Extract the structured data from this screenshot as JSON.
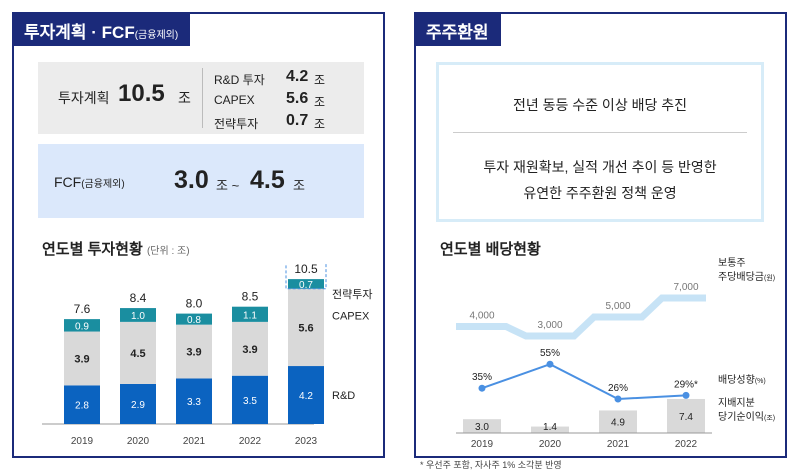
{
  "left_panel": {
    "title": "투자계획 · FCF",
    "title_note": "(금융제외)",
    "plan_label": "투자계획",
    "plan_value": "10.5",
    "plan_unit": "조",
    "breakdown": [
      {
        "label": "R&D 투자",
        "value": "4.2",
        "unit": "조"
      },
      {
        "label": "CAPEX",
        "value": "5.6",
        "unit": "조"
      },
      {
        "label": "전략투자",
        "value": "0.7",
        "unit": "조"
      }
    ],
    "fcf_label": "FCF",
    "fcf_note": "(금융제외)",
    "fcf_low": "3.0",
    "fcf_low_unit": "조 ~",
    "fcf_high": "4.5",
    "fcf_high_unit": "조",
    "chart_title": "연도별 투자현황",
    "chart_unit": "(단위 : 조)"
  },
  "right_panel": {
    "title": "주주환원",
    "policy_line1": "전년 동등 수준 이상 배당 추진",
    "policy_line2": "투자 재원확보, 실적 개선 추이 등 반영한",
    "policy_line3": "유연한 주주환원 정책 운영",
    "chart_title": "연도별 배당현황",
    "dps_legend_1": "보통주",
    "dps_legend_2": "주당배당금",
    "dps_legend_unit": "(원)",
    "payout_legend": "배당성향",
    "payout_legend_unit": "(%)",
    "ni_legend_1": "지배지분",
    "ni_legend_2": "당기순이익",
    "ni_legend_unit": "(조)",
    "footnote": "* 우선주 포함, 자사주 1% 소각분 반영"
  },
  "colors": {
    "navy": "#1b2a7a",
    "rd": "#0b63c0",
    "capex": "#d9d9d9",
    "strategic": "#1a8ea0",
    "line_blue": "#4a90e2",
    "step_light": "#c7e3f6",
    "ni_bar": "#d9d9d9"
  },
  "chart_data": [
    {
      "type": "bar",
      "stacked": true,
      "title": "연도별 투자현황",
      "unit": "조",
      "categories": [
        "2019",
        "2020",
        "2021",
        "2022",
        "2023"
      ],
      "series": [
        {
          "name": "R&D",
          "values": [
            2.8,
            2.9,
            3.3,
            3.5,
            4.2
          ]
        },
        {
          "name": "CAPEX",
          "values": [
            3.9,
            4.5,
            3.9,
            3.9,
            5.6
          ]
        },
        {
          "name": "전략투자",
          "values": [
            0.9,
            1.0,
            0.8,
            1.1,
            0.7
          ]
        }
      ],
      "totals": [
        7.6,
        8.4,
        8.0,
        8.5,
        10.5
      ]
    },
    {
      "type": "line",
      "title": "연도별 배당현황",
      "categories": [
        "2019",
        "2020",
        "2021",
        "2022"
      ],
      "series": [
        {
          "name": "보통주 주당배당금",
          "unit": "원",
          "values": [
            4000,
            3000,
            5000,
            7000
          ],
          "style": "step"
        },
        {
          "name": "배당성향",
          "unit": "%",
          "values": [
            35,
            55,
            26,
            29
          ],
          "labels": [
            "35%",
            "55%",
            "26%",
            "29%*"
          ]
        },
        {
          "name": "지배지분 당기순이익",
          "unit": "조",
          "type": "bar",
          "values": [
            3.0,
            1.4,
            4.9,
            7.4
          ]
        }
      ]
    }
  ]
}
